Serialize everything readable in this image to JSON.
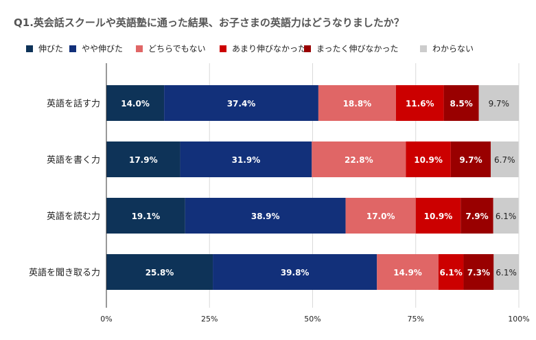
{
  "chart_data": {
    "type": "bar",
    "orientation": "horizontal",
    "stacked": true,
    "title": "Q1.英会話スクールや英語塾に通った結果、お子さまの英語力はどうなりましたか？",
    "categories": [
      "英語を話す力",
      "英語を書く力",
      "英語を読む力",
      "英語を聞き取る力"
    ],
    "series": [
      {
        "name": "伸びた",
        "color": "#0e3358",
        "values": [
          14.0,
          17.9,
          19.1,
          25.8
        ]
      },
      {
        "name": "やや伸びた",
        "color": "#12307a",
        "values": [
          37.4,
          31.9,
          38.9,
          39.8
        ]
      },
      {
        "name": "どちらでもない",
        "color": "#e06666",
        "values": [
          18.8,
          22.8,
          17.0,
          14.9
        ]
      },
      {
        "name": "あまり伸びなかった",
        "color": "#cc0000",
        "values": [
          11.6,
          10.9,
          10.9,
          6.1
        ]
      },
      {
        "name": "まったく伸びなかった",
        "color": "#990000",
        "values": [
          8.5,
          9.7,
          7.9,
          7.3
        ]
      },
      {
        "name": "わからない",
        "color": "#cccccc",
        "values": [
          9.7,
          6.7,
          6.1,
          6.1
        ]
      }
    ],
    "xlim": [
      0,
      100
    ],
    "x_ticks": [
      "0%",
      "25%",
      "50%",
      "75%",
      "100%"
    ],
    "grid": true,
    "legend_position": "top"
  }
}
